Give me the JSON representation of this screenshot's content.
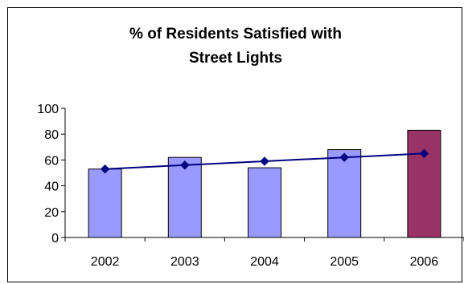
{
  "chart_data": {
    "type": "bar",
    "title": [
      "% of Residents Satisfied with",
      "Street Lights"
    ],
    "categories": [
      "2002",
      "2003",
      "2004",
      "2005",
      "2006"
    ],
    "series": [
      {
        "type": "bar",
        "values": [
          53,
          62,
          54,
          68,
          83
        ]
      },
      {
        "type": "line",
        "values": [
          53,
          56,
          59,
          62,
          65
        ]
      }
    ],
    "bar_colors": [
      "#9999ff",
      "#9999ff",
      "#9999ff",
      "#9999ff",
      "#993366"
    ],
    "line_color": "#000080",
    "ylim": [
      0,
      100
    ],
    "yticks": [
      0,
      20,
      40,
      60,
      80,
      100
    ],
    "xlabel": "",
    "ylabel": "",
    "grid": false,
    "legend": "none"
  }
}
